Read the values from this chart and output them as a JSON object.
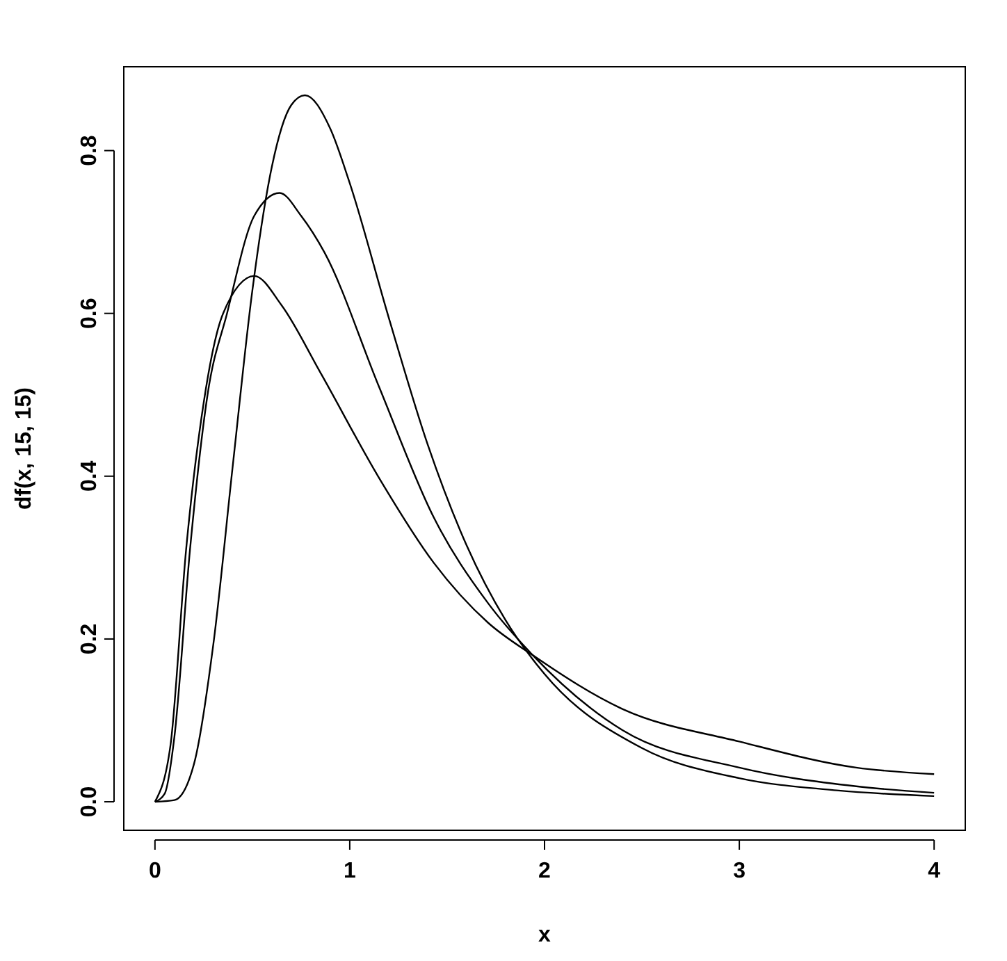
{
  "chart_data": {
    "type": "line",
    "xlabel": "x",
    "ylabel": "df(x, 15, 15)",
    "xlim": [
      -0.16,
      4.16
    ],
    "ylim": [
      -0.035,
      0.903
    ],
    "xticks": [
      0,
      1,
      2,
      3,
      4
    ],
    "yticks": [
      {
        "value": 0,
        "label": "0.0"
      },
      0.2,
      0.4,
      0.6,
      0.8
    ],
    "grid": false,
    "marker": "none",
    "line_style": "solid",
    "series": [
      {
        "color": "#000000",
        "x": [
          0,
          0.1,
          0.2,
          0.3,
          0.4,
          0.5,
          0.6,
          0.7,
          0.77,
          0.9,
          1.0,
          1.2,
          1.4,
          1.6,
          1.8,
          2.0,
          2.5,
          3.0,
          3.5,
          4.0
        ],
        "values": [
          0,
          0.002,
          0.046,
          0.194,
          0.414,
          0.628,
          0.78,
          0.856,
          0.868,
          0.827,
          0.76,
          0.595,
          0.439,
          0.315,
          0.223,
          0.157,
          0.066,
          0.029,
          0.014,
          0.007
        ]
      },
      {
        "color": "#000000",
        "x": [
          0,
          0.05,
          0.1,
          0.18,
          0.27,
          0.37,
          0.51,
          0.64,
          0.75,
          0.87,
          1.15,
          1.43,
          1.71,
          1.94,
          2.4,
          3.0,
          3.6,
          4.0
        ],
        "values": [
          0,
          0.01,
          0.08,
          0.31,
          0.5,
          0.6,
          0.72,
          0.748,
          0.72,
          0.675,
          0.51,
          0.35,
          0.244,
          0.18,
          0.088,
          0.042,
          0.019,
          0.011
        ]
      },
      {
        "color": "#000000",
        "x": [
          0,
          0.08,
          0.16,
          0.25,
          0.35,
          0.51,
          0.65,
          0.85,
          1.15,
          1.43,
          1.71,
          1.94,
          2.4,
          3.0,
          3.6,
          4.0
        ],
        "values": [
          0,
          0.07,
          0.31,
          0.49,
          0.6,
          0.646,
          0.61,
          0.527,
          0.398,
          0.294,
          0.22,
          0.18,
          0.114,
          0.074,
          0.042,
          0.034
        ]
      }
    ]
  }
}
